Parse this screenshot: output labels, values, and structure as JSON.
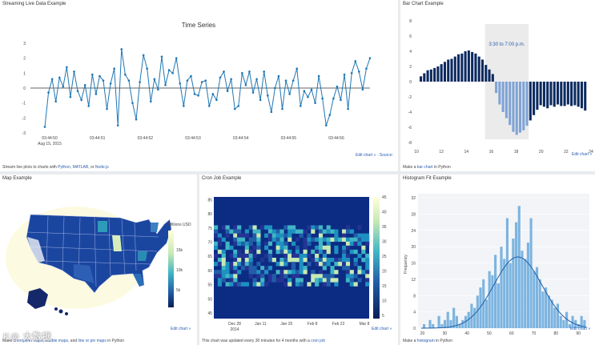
{
  "panels": {
    "stream": {
      "title": "Streaming Live Data Example",
      "foot_pre": "Stream live plots to charts with ",
      "foot_links": [
        "Python",
        "MATLAB",
        "Node.js"
      ],
      "edit": "Edit chart » · Source:"
    },
    "bar": {
      "title": "Bar Chart Example",
      "foot_pre": "Make a ",
      "foot_link": "bar chart",
      "foot_post": " in Python",
      "edit": "Edit chart »",
      "annotation": "3:30 to 7:00 p.m."
    },
    "map": {
      "title": "Map Example",
      "foot_pre": "Make ",
      "foot_links": [
        "choropleth maps",
        "bubble maps",
        "line or pin maps"
      ],
      "foot_post": " in Python",
      "edit": "Edit chart »",
      "colorbar_title": "Millions USD"
    },
    "cron": {
      "title": "Cron Job Example",
      "foot_pre": "This chart was updated every 30 minutes for 4 months with a ",
      "foot_link": "cron job",
      "edit": "Edit chart »"
    },
    "hist": {
      "title": "Histogram Fit Example",
      "foot_pre": "Make a ",
      "foot_link": "histogram",
      "foot_post": " in Python",
      "edit": "Edit chart »"
    }
  },
  "chart_data": [
    {
      "type": "line",
      "title": "Time Series",
      "x_ticks": [
        "03:44:50",
        "03:44:51",
        "03:44:52",
        "03:44:53",
        "03:44:54",
        "03:44:55",
        "03:44:56"
      ],
      "x_sub": "Aug 15, 2015",
      "ylim": [
        -3,
        3
      ],
      "y_ticks": [
        -3,
        -2,
        -1,
        0,
        1,
        2,
        3
      ],
      "values": [
        -2.6,
        -0.3,
        0.6,
        -0.9,
        0.7,
        0.1,
        1.4,
        -0.6,
        1.1,
        -0.2,
        -0.8,
        0.2,
        -1.2,
        0.9,
        -0.4,
        0.8,
        0.5,
        -1.4,
        0.3,
        1.3,
        -2.5,
        2.6,
        0.9,
        0.5,
        -1.0,
        -2.1,
        0.4,
        2.2,
        1.3,
        -0.9,
        0.6,
        -0.1,
        2.1,
        0.2,
        1.2,
        1.0,
        2.0,
        0.3,
        -1.2,
        0.5,
        0.8,
        -0.4,
        -0.5,
        0.4,
        0.5,
        -1.2,
        -0.4,
        -0.8,
        0.7,
        1.1,
        -0.2,
        0.6,
        -1.4,
        -1.2,
        1.0,
        0.2,
        1.1,
        -0.3,
        0.6,
        -0.8,
        1.1,
        -0.5,
        -1.6,
        0.0,
        0.8,
        -1.4,
        0.5,
        -0.4,
        0.5,
        1.3,
        -1.2,
        -0.2,
        -0.6,
        -0.1,
        -1.0,
        0.8,
        -0.7,
        -2.5,
        -1.8,
        -0.7,
        0.1,
        -0.8,
        0.9,
        -1.4,
        1.0,
        1.8,
        1.1,
        -0.1,
        1.3,
        2.0
      ]
    },
    {
      "type": "bar",
      "xlim": [
        10,
        24
      ],
      "x_ticks": [
        10,
        12,
        14,
        16,
        18,
        20,
        22,
        24
      ],
      "ylim": [
        -8,
        8
      ],
      "y_ticks": [
        8,
        6,
        4,
        2,
        0,
        -2,
        -4,
        -6,
        -8
      ],
      "highlight_range": [
        15.5,
        19
      ],
      "values": [
        0.7,
        1.1,
        1.5,
        1.6,
        1.8,
        2.0,
        2.3,
        2.6,
        2.9,
        3.0,
        3.3,
        3.6,
        3.7,
        4.0,
        4.1,
        3.9,
        3.7,
        3.3,
        2.9,
        2.2,
        1.6,
        1.0,
        -1.5,
        -3.0,
        -4.0,
        -4.8,
        -5.7,
        -6.6,
        -7.0,
        -6.7,
        -6.4,
        -5.8,
        -5.1,
        -4.4,
        -3.7,
        -3.1,
        -3.3,
        -3.5,
        -3.1,
        -3.3,
        -3.0,
        -3.2,
        -3.2,
        -3.0,
        -3.2,
        -3.1,
        -3.3,
        -3.5,
        -3.8
      ]
    },
    {
      "type": "heatmap",
      "x_ticks": [
        "Dec 28",
        "Jan 11",
        "Jan 25",
        "Feb 8",
        "Feb 22",
        "Mar 8"
      ],
      "x_sub": "2014",
      "y_ticks": [
        45,
        50,
        55,
        60,
        65,
        70,
        75,
        80,
        85
      ],
      "colorbar_ticks": [
        5,
        10,
        15,
        20,
        25,
        30,
        35,
        40,
        45
      ]
    },
    {
      "type": "map",
      "colorbar_title": "Millions USD",
      "colorbar_ticks": [
        "15k",
        "10k",
        "5k"
      ]
    },
    {
      "type": "bar",
      "subtype": "histogram",
      "x_ticks": [
        20,
        30,
        40,
        50,
        60,
        70,
        80,
        90
      ],
      "y_ticks": [
        0,
        4,
        8,
        12,
        16,
        20,
        24,
        28,
        32
      ],
      "ylabel": "Frequency",
      "values": [
        1,
        0,
        2,
        1,
        0,
        3,
        1,
        2,
        4,
        2,
        5,
        3,
        1,
        2,
        3,
        4,
        6,
        5,
        8,
        10,
        12,
        7,
        14,
        13,
        18,
        11,
        20,
        17,
        27,
        16,
        22,
        26,
        30,
        19,
        17,
        21,
        27,
        14,
        15,
        12,
        9,
        10,
        8,
        7,
        5,
        6,
        3,
        2,
        4,
        1,
        3,
        2,
        1,
        3,
        2
      ]
    }
  ]
}
